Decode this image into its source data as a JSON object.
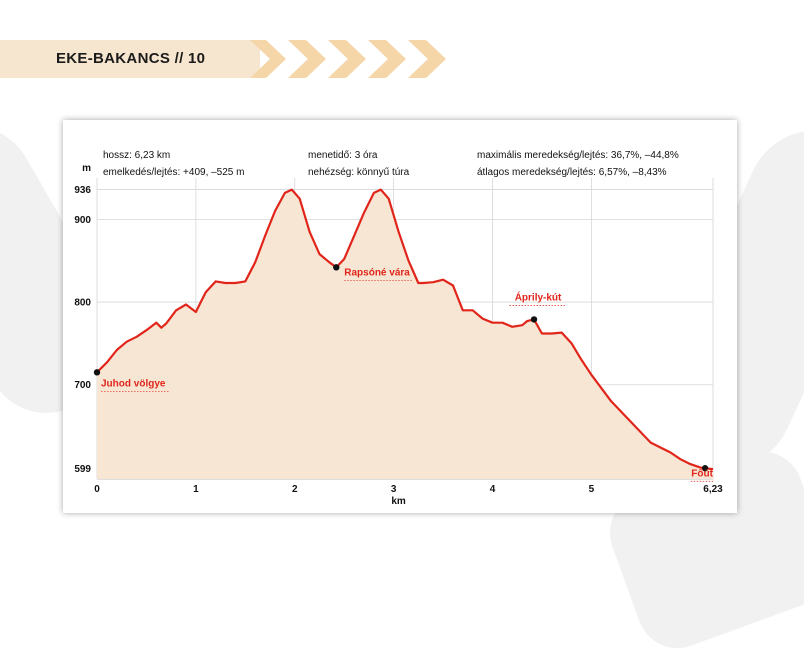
{
  "header": {
    "title": "EKE-BAKANCS  //  10"
  },
  "info": {
    "length": "hossz: 6,23 km",
    "elevation": "emelkedés/lejtés: +409, –525 m",
    "time": "menetidő: 3 óra",
    "difficulty": "nehézség: könnyű túra",
    "max_slope": "maximális meredekség/lejtés: 36,7%, –44,8%",
    "avg_slope": "átlagos meredekség/lejtés: 6,57%, –8,43%"
  },
  "colors": {
    "line": "#e1251b",
    "fill": "#f7e6d3",
    "header_band": "#f7e6cf",
    "chevron": "#f4d6a8"
  },
  "chart_data": {
    "type": "area",
    "title": "",
    "xlabel": "km",
    "ylabel": "m",
    "xlim": [
      0,
      6.23
    ],
    "ylim": [
      586,
      950
    ],
    "x_ticks": [
      0,
      1,
      2,
      3,
      4,
      5,
      6.23
    ],
    "x_tick_labels": [
      "0",
      "1",
      "2",
      "3",
      "4",
      "5",
      "6,23"
    ],
    "y_ticks": [
      599,
      700,
      800,
      900,
      936
    ],
    "y_tick_labels": [
      "599",
      "700",
      "800",
      "900",
      "936"
    ],
    "grid": true,
    "series": [
      {
        "x": [
          0,
          0.1,
          0.2,
          0.3,
          0.4,
          0.5,
          0.6,
          0.65,
          0.7,
          0.8,
          0.9,
          1.0,
          1.05,
          1.1,
          1.2,
          1.3,
          1.4,
          1.5,
          1.6,
          1.7,
          1.8,
          1.9,
          1.97,
          2.05,
          2.15,
          2.25,
          2.35,
          2.42,
          2.5,
          2.6,
          2.7,
          2.8,
          2.87,
          2.95,
          3.05,
          3.15,
          3.25,
          3.3,
          3.4,
          3.5,
          3.6,
          3.7,
          3.8,
          3.9,
          4.0,
          4.1,
          4.2,
          4.3,
          4.35,
          4.42,
          4.5,
          4.6,
          4.7,
          4.8,
          4.9,
          5.0,
          5.2,
          5.4,
          5.6,
          5.8,
          5.9,
          6.0,
          6.1,
          6.15,
          6.23
        ],
        "y": [
          715,
          727,
          742,
          752,
          758,
          766,
          775,
          769,
          774,
          790,
          797,
          788,
          800,
          812,
          825,
          823,
          823,
          825,
          848,
          880,
          910,
          932,
          936,
          925,
          885,
          858,
          848,
          842,
          852,
          880,
          908,
          932,
          936,
          925,
          885,
          850,
          823,
          823,
          824,
          827,
          820,
          790,
          790,
          780,
          775,
          775,
          770,
          772,
          777,
          779,
          762,
          762,
          763,
          750,
          730,
          712,
          680,
          655,
          630,
          618,
          610,
          604,
          600,
          599,
          598
        ]
      }
    ],
    "annotations": [
      {
        "label": "Juhod völgye",
        "x": 0,
        "y": 715
      },
      {
        "label": "Rapsóné vára",
        "x": 2.42,
        "y": 842
      },
      {
        "label": "Áprily-kút",
        "x": 4.42,
        "y": 779
      },
      {
        "label": "Főút",
        "x": 6.15,
        "y": 599
      }
    ]
  }
}
